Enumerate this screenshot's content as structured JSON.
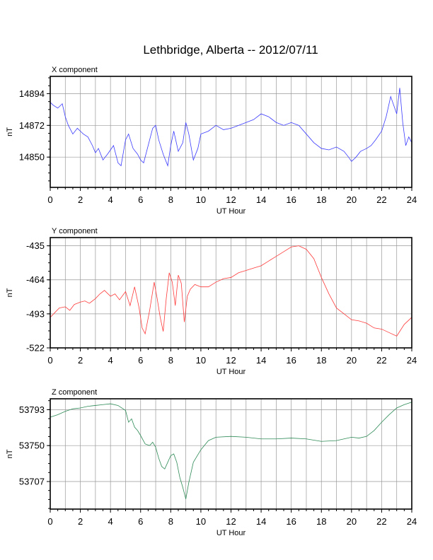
{
  "title": "Lethbridge, Alberta -- 2012/07/11",
  "chart_data": [
    {
      "type": "line",
      "panel_label": "X component",
      "xlabel": "UT Hour",
      "ylabel": "nT",
      "xlim": [
        0,
        24
      ],
      "ylim": [
        14829,
        14906
      ],
      "x_ticks": [
        0,
        2,
        4,
        6,
        8,
        10,
        12,
        14,
        16,
        18,
        20,
        22,
        24
      ],
      "y_ticks": [
        14850,
        14872,
        14894
      ],
      "grid": true,
      "color": "#3a3aff",
      "series": [
        {
          "x": [
            0,
            0.2,
            0.5,
            0.8,
            1.0,
            1.2,
            1.5,
            1.8,
            2.0,
            2.2,
            2.5,
            2.8,
            3.0,
            3.2,
            3.5,
            3.8,
            4.0,
            4.2,
            4.5,
            4.7,
            5.0,
            5.2,
            5.5,
            5.8,
            6.0,
            6.2,
            6.5,
            6.8,
            7.0,
            7.2,
            7.5,
            7.8,
            8.0,
            8.2,
            8.5,
            8.8,
            9.0,
            9.2,
            9.5,
            9.8,
            10.0,
            10.5,
            11.0,
            11.5,
            12.0,
            12.5,
            13.0,
            13.5,
            14.0,
            14.5,
            15.0,
            15.5,
            16.0,
            16.5,
            17.0,
            17.5,
            18.0,
            18.5,
            19.0,
            19.5,
            19.8,
            20.0,
            20.3,
            20.6,
            21.0,
            21.3,
            21.6,
            22.0,
            22.3,
            22.6,
            22.8,
            23.0,
            23.2,
            23.4,
            23.6,
            23.8,
            24.0
          ],
          "y": [
            14888,
            14886,
            14884,
            14887,
            14878,
            14872,
            14866,
            14870,
            14868,
            14866,
            14864,
            14858,
            14853,
            14856,
            14848,
            14852,
            14855,
            14858,
            14846,
            14844,
            14862,
            14866,
            14856,
            14852,
            14848,
            14846,
            14858,
            14870,
            14872,
            14862,
            14852,
            14844,
            14858,
            14868,
            14854,
            14860,
            14874,
            14866,
            14848,
            14856,
            14866,
            14868,
            14872,
            14869,
            14870,
            14872,
            14874,
            14876,
            14880,
            14878,
            14874,
            14872,
            14874,
            14872,
            14866,
            14860,
            14856,
            14855,
            14857,
            14854,
            14850,
            14847,
            14850,
            14854,
            14856,
            14858,
            14862,
            14868,
            14878,
            14892,
            14886,
            14880,
            14898,
            14874,
            14858,
            14864,
            14860
          ]
        }
      ]
    },
    {
      "type": "line",
      "panel_label": "Y component",
      "xlabel": "UT Hour",
      "ylabel": "nT",
      "xlim": [
        0,
        24
      ],
      "ylim": [
        -522,
        -428
      ],
      "x_ticks": [
        0,
        2,
        4,
        6,
        8,
        10,
        12,
        14,
        16,
        18,
        20,
        22,
        24
      ],
      "y_ticks": [
        -435,
        -464,
        -493,
        -522
      ],
      "grid": true,
      "color": "#ff3a3a",
      "series": [
        {
          "x": [
            0,
            0.3,
            0.6,
            1.0,
            1.3,
            1.6,
            2.0,
            2.3,
            2.6,
            3.0,
            3.3,
            3.6,
            4.0,
            4.3,
            4.6,
            5.0,
            5.3,
            5.6,
            5.9,
            6.1,
            6.3,
            6.6,
            6.9,
            7.1,
            7.3,
            7.5,
            7.7,
            7.9,
            8.1,
            8.3,
            8.5,
            8.7,
            8.9,
            9.1,
            9.3,
            9.6,
            10.0,
            10.5,
            11.0,
            11.5,
            12.0,
            12.5,
            13.0,
            13.5,
            14.0,
            14.5,
            15.0,
            15.5,
            16.0,
            16.5,
            17.0,
            17.5,
            18.0,
            18.5,
            19.0,
            19.5,
            20.0,
            20.5,
            21.0,
            21.5,
            22.0,
            22.5,
            23.0,
            23.5,
            24.0
          ],
          "y": [
            -496,
            -492,
            -488,
            -487,
            -490,
            -485,
            -483,
            -482,
            -484,
            -480,
            -476,
            -473,
            -478,
            -476,
            -481,
            -474,
            -486,
            -470,
            -488,
            -505,
            -510,
            -490,
            -466,
            -480,
            -496,
            -508,
            -480,
            -458,
            -466,
            -486,
            -460,
            -467,
            -500,
            -478,
            -472,
            -468,
            -470,
            -470,
            -466,
            -463,
            -462,
            -458,
            -456,
            -454,
            -452,
            -448,
            -444,
            -440,
            -436,
            -435,
            -438,
            -446,
            -462,
            -476,
            -488,
            -493,
            -498,
            -499,
            -501,
            -505,
            -506,
            -509,
            -512,
            -502,
            -496
          ]
        }
      ]
    },
    {
      "type": "line",
      "panel_label": "Z component",
      "xlabel": "UT Hour",
      "ylabel": "nT",
      "xlim": [
        0,
        24
      ],
      "ylim": [
        53674,
        53806
      ],
      "x_ticks": [
        0,
        2,
        4,
        6,
        8,
        10,
        12,
        14,
        16,
        18,
        20,
        22,
        24
      ],
      "y_ticks": [
        53707,
        53750,
        53793
      ],
      "grid": true,
      "color": "#2e8b57",
      "series": [
        {
          "x": [
            0,
            0.5,
            1.0,
            1.5,
            2.0,
            2.5,
            3.0,
            3.5,
            4.0,
            4.5,
            5.0,
            5.2,
            5.4,
            5.6,
            5.8,
            6.0,
            6.3,
            6.6,
            6.8,
            7.0,
            7.2,
            7.4,
            7.6,
            7.8,
            8.0,
            8.2,
            8.4,
            8.6,
            8.8,
            9.0,
            9.2,
            9.5,
            10.0,
            10.5,
            11.0,
            12.0,
            13.0,
            14.0,
            15.0,
            16.0,
            17.0,
            18.0,
            19.0,
            20.0,
            20.5,
            21.0,
            21.5,
            22.0,
            22.5,
            23.0,
            23.5,
            24.0
          ],
          "y": [
            53784,
            53787,
            53791,
            53794,
            53795,
            53797,
            53798,
            53799,
            53800,
            53798,
            53792,
            53778,
            53782,
            53772,
            53768,
            53762,
            53752,
            53750,
            53754,
            53748,
            53735,
            53725,
            53722,
            53730,
            53738,
            53740,
            53730,
            53712,
            53700,
            53686,
            53706,
            53730,
            53745,
            53756,
            53760,
            53761,
            53760,
            53758,
            53758,
            53759,
            53758,
            53755,
            53756,
            53760,
            53759,
            53761,
            53768,
            53778,
            53787,
            53795,
            53799,
            53802
          ]
        }
      ]
    }
  ]
}
